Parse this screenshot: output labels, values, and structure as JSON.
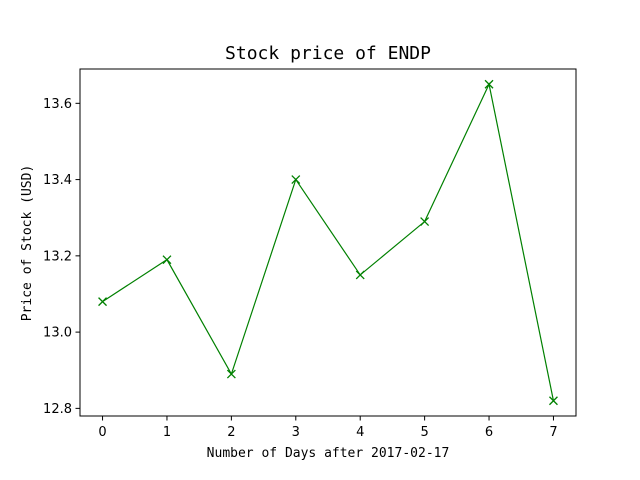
{
  "chart_data": {
    "type": "line",
    "title": "Stock price of ENDP",
    "xlabel": "Number of Days after 2017-02-17",
    "ylabel": "Price of Stock (USD)",
    "x": [
      0,
      1,
      2,
      3,
      4,
      5,
      6,
      7
    ],
    "series": [
      {
        "values": [
          13.08,
          13.19,
          12.89,
          13.4,
          13.15,
          13.29,
          13.65,
          12.82
        ],
        "color": "#008000",
        "marker": "x"
      }
    ],
    "xlim": [
      -0.35,
      7.35
    ],
    "ylim": [
      12.78,
      13.69
    ],
    "xticks": [
      0,
      1,
      2,
      3,
      4,
      5,
      6,
      7
    ],
    "xtick_labels": [
      "0",
      "1",
      "2",
      "3",
      "4",
      "5",
      "6",
      "7"
    ],
    "yticks": [
      12.8,
      13.0,
      13.2,
      13.4,
      13.6
    ],
    "ytick_labels": [
      "12.8",
      "13.0",
      "13.2",
      "13.4",
      "13.6"
    ],
    "grid": false,
    "legend": "none"
  }
}
